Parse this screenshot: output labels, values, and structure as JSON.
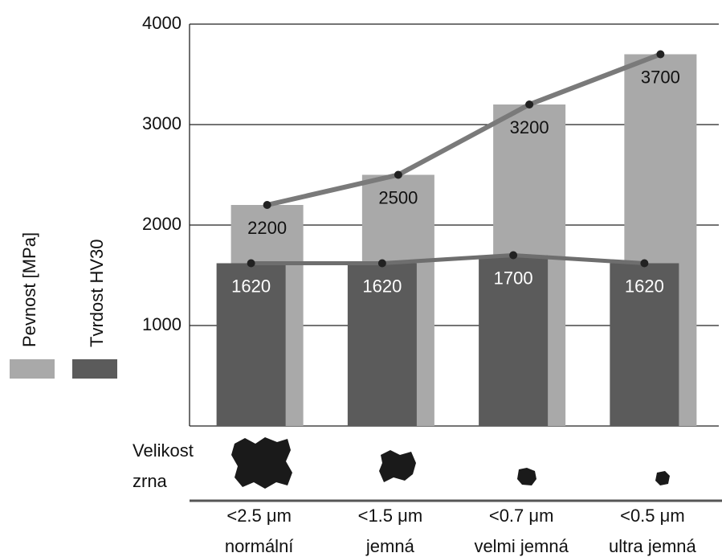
{
  "chart_data": {
    "type": "bar",
    "categories": [
      "<2.5 μm",
      "<1.5 μm",
      "<0.7 μm",
      "<0.5 μm"
    ],
    "grain_classes": [
      "normální",
      "jemná",
      "velmi jemná",
      "ultra jemná"
    ],
    "grain_size_label": [
      "Velikost",
      "zrna"
    ],
    "series": [
      {
        "name": "Pevnost [MPa]",
        "color": "#a9a9a9",
        "line_color": "#7a7a7a",
        "values": [
          2200,
          2500,
          3200,
          3700
        ]
      },
      {
        "name": "Tvrdost HV30",
        "color": "#5b5b5b",
        "line_color": "#6e6e6e",
        "values": [
          1620,
          1620,
          1700,
          1620
        ]
      }
    ],
    "ylim": [
      0,
      4000
    ],
    "yticks": [
      1000,
      2000,
      3000,
      4000
    ],
    "grid": true
  }
}
